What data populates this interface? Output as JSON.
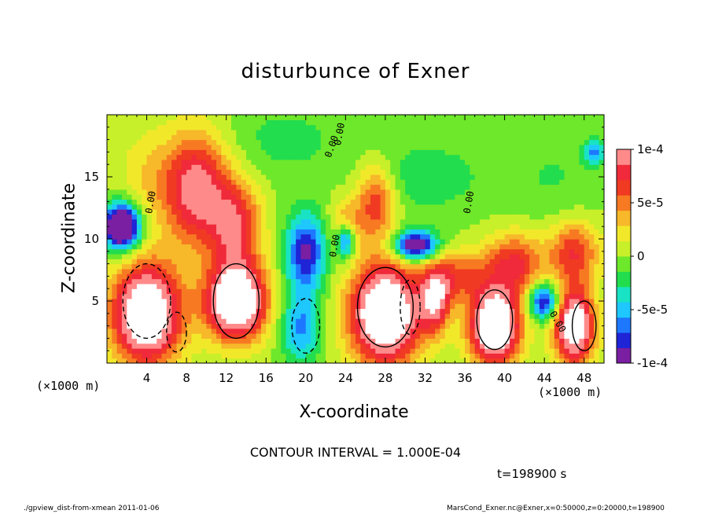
{
  "page": {
    "title": "disturbunce of Exner",
    "xlabel": "X-coordinate",
    "ylabel": "Z-coordinate",
    "x_unit_left": "(×1000 m)",
    "x_unit_right": "(×1000 m)",
    "contour_interval": "CONTOUR INTERVAL = 1.000E-04",
    "time_label": "t=198900 s",
    "footer_left": "./gpview_dist-from-xmean  2011-01-06",
    "footer_right": "MarsCond_Exner.nc@Exner,x=0:50000,z=0:20000,t=198900"
  },
  "chart_data": {
    "type": "heatmap",
    "title": "disturbunce of Exner",
    "xlabel": "X-coordinate",
    "ylabel": "Z-coordinate",
    "xlim": [
      0,
      50
    ],
    "ylim": [
      0,
      20
    ],
    "x_ticks": [
      4,
      8,
      12,
      16,
      20,
      24,
      28,
      32,
      36,
      40,
      44,
      48
    ],
    "y_ticks": [
      5,
      10,
      15
    ],
    "colorbar": {
      "vmin": -0.0001,
      "vmax": 0.0001,
      "tick_values": [
        0.0001,
        5e-05,
        0,
        -5e-05,
        -0.0001
      ],
      "tick_labels": [
        "1e-4",
        "5e-5",
        "0",
        "-5e-5",
        "-1e-4"
      ],
      "colors": [
        "#7a1fa2",
        "#1f24d6",
        "#1e78ff",
        "#1ec8ff",
        "#19e3c4",
        "#22dd4e",
        "#6ee82a",
        "#c8f02a",
        "#f2e82a",
        "#f7b82a",
        "#f77a22",
        "#f03a22",
        "#f02a3a",
        "#ff8a8a"
      ]
    },
    "contour_labels": [
      "0.00",
      "0.00",
      "0.00",
      "0.00",
      "0.00",
      "0.00"
    ],
    "contour_interval": 0.0001,
    "time": "t=198900 s",
    "grid": false
  }
}
